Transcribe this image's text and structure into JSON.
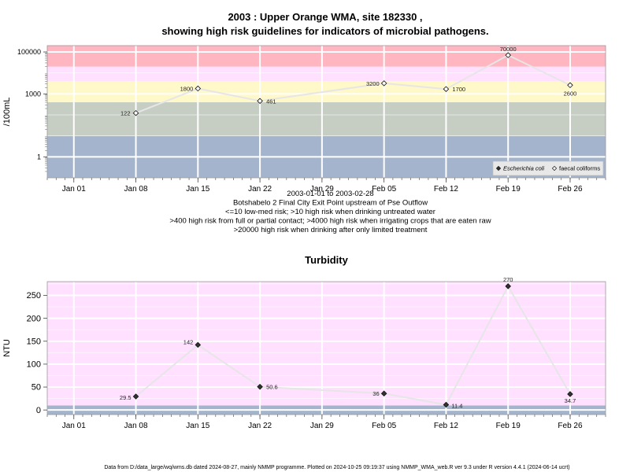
{
  "page": {
    "title_line1": "2003 : Upper Orange WMA, site 182330 ,",
    "title_line2": "showing high risk guidelines for indicators of microbial pathogens.",
    "footer": "Data from D:/data_large/wq/wms.db dated 2024-08-27, mainly NMMP programme. Plotted on 2024-10-25 09:19:37 using NMMP_WMA_web.R ver 9.3 under R version 4.4.1 (2024-06-14 ucrt)"
  },
  "colors": {
    "band_red": "#ffb6c1",
    "band_pink": "#ffe0ff",
    "band_yellow": "#fff8c8",
    "band_grey": "#c6cec4",
    "band_blue": "#a4b4cc",
    "grid": "#ffffff",
    "line": "#e6e6e6",
    "point_fill": "#333333"
  },
  "chart_data": [
    {
      "type": "line",
      "title": "",
      "ylabel": "/100mL",
      "xlabel": "",
      "y_scale": "log",
      "ylim": [
        0.1,
        200000
      ],
      "xlim": [
        "2002-12-29",
        "2003-03-02"
      ],
      "x_ticks": [
        {
          "date": "2003-01-01",
          "label": "Jan 01"
        },
        {
          "date": "2003-01-08",
          "label": "Jan 08"
        },
        {
          "date": "2003-01-15",
          "label": "Jan 15"
        },
        {
          "date": "2003-01-22",
          "label": "Jan 22"
        },
        {
          "date": "2003-01-29",
          "label": "Jan 29"
        },
        {
          "date": "2003-02-05",
          "label": "Feb 05"
        },
        {
          "date": "2003-02-12",
          "label": "Feb 12"
        },
        {
          "date": "2003-02-19",
          "label": "Feb 19"
        },
        {
          "date": "2003-02-26",
          "label": "Feb 26"
        }
      ],
      "y_ticks": [
        {
          "value": 1,
          "label": "1"
        },
        {
          "value": 1000,
          "label": "1000"
        },
        {
          "value": 100000,
          "label": "100000"
        }
      ],
      "bands": [
        {
          "from": 0.1,
          "to": 10,
          "color": "band_blue"
        },
        {
          "from": 10,
          "to": 400,
          "color": "band_grey"
        },
        {
          "from": 400,
          "to": 4000,
          "color": "band_yellow"
        },
        {
          "from": 4000,
          "to": 20000,
          "color": "band_pink"
        },
        {
          "from": 20000,
          "to": 200000,
          "color": "band_red"
        }
      ],
      "series": [
        {
          "name": "faecal coliforms",
          "marker": "open",
          "points": [
            {
              "x": "2003-01-08",
              "y": 122,
              "label": "122"
            },
            {
              "x": "2003-01-15",
              "y": 1800,
              "label": "1800"
            },
            {
              "x": "2003-01-22",
              "y": 461,
              "label": "461"
            },
            {
              "x": "2003-02-05",
              "y": 3200,
              "label": "3200"
            },
            {
              "x": "2003-02-12",
              "y": 1700,
              "label": "1700"
            },
            {
              "x": "2003-02-19",
              "y": 70000,
              "label": "70000"
            },
            {
              "x": "2003-02-26",
              "y": 2600,
              "label": "2600"
            }
          ]
        }
      ],
      "legend": {
        "position": "bottom-right",
        "entries": [
          {
            "label": "Escherichia coli",
            "marker": "filled",
            "italic": true
          },
          {
            "label": "faecal coliforms",
            "marker": "open",
            "italic": false
          }
        ]
      },
      "caption": [
        "2003-01-01 to 2003-02-28",
        "Botshabelo 2 Final City Exit Point upstream of Pse Outflow",
        "<=10 low-med risk; >10 high risk when drinking untreated water",
        ">400 high risk from full or partial contact; >4000 high risk when irrigating crops that are eaten raw",
        ">20000 high risk when drinking after only limited treatment"
      ],
      "grid": true
    },
    {
      "type": "line",
      "title": "Turbidity",
      "ylabel": "NTU",
      "xlabel": "",
      "y_scale": "linear",
      "ylim": [
        -10,
        280
      ],
      "xlim": [
        "2002-12-29",
        "2003-03-02"
      ],
      "x_ticks": [
        {
          "date": "2003-01-01",
          "label": "Jan 01"
        },
        {
          "date": "2003-01-08",
          "label": "Jan 08"
        },
        {
          "date": "2003-01-15",
          "label": "Jan 15"
        },
        {
          "date": "2003-01-22",
          "label": "Jan 22"
        },
        {
          "date": "2003-01-29",
          "label": "Jan 29"
        },
        {
          "date": "2003-02-05",
          "label": "Feb 05"
        },
        {
          "date": "2003-02-12",
          "label": "Feb 12"
        },
        {
          "date": "2003-02-19",
          "label": "Feb 19"
        },
        {
          "date": "2003-02-26",
          "label": "Feb 26"
        }
      ],
      "y_ticks": [
        {
          "value": 0,
          "label": "0"
        },
        {
          "value": 50,
          "label": "50"
        },
        {
          "value": 100,
          "label": "100"
        },
        {
          "value": 150,
          "label": "150"
        },
        {
          "value": 200,
          "label": "200"
        },
        {
          "value": 250,
          "label": "250"
        }
      ],
      "bands": [
        {
          "from": -10,
          "to": 10,
          "color": "band_blue"
        },
        {
          "from": 10,
          "to": 280,
          "color": "band_pink"
        }
      ],
      "series": [
        {
          "name": "",
          "marker": "filled",
          "points": [
            {
              "x": "2003-01-08",
              "y": 29.5,
              "label": "29.5"
            },
            {
              "x": "2003-01-15",
              "y": 142,
              "label": "142"
            },
            {
              "x": "2003-01-22",
              "y": 50.6,
              "label": "50.6"
            },
            {
              "x": "2003-02-05",
              "y": 36,
              "label": "36"
            },
            {
              "x": "2003-02-12",
              "y": 11.4,
              "label": "11.4"
            },
            {
              "x": "2003-02-19",
              "y": 270,
              "label": "270"
            },
            {
              "x": "2003-02-26",
              "y": 34.7,
              "label": "34.7"
            }
          ]
        }
      ],
      "grid": true
    }
  ]
}
